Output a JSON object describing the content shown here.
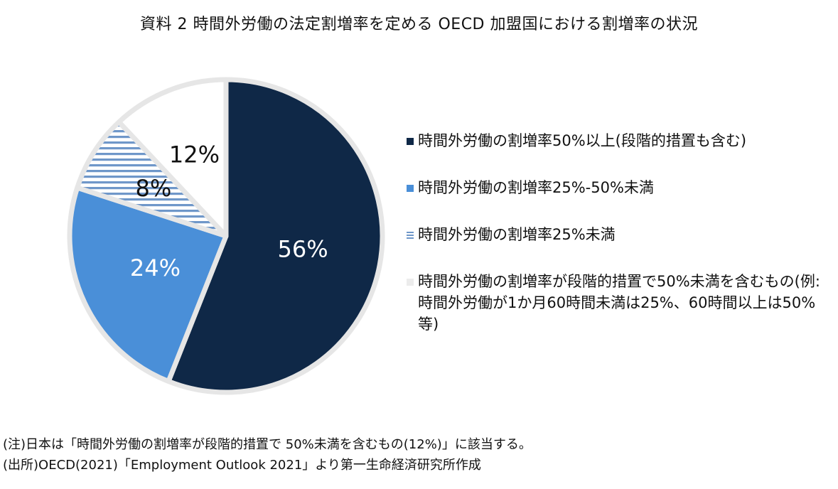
{
  "title": "資料 2 時間外労働の法定割増率を定める OECD 加盟国における割増率の状況",
  "chart_data": {
    "type": "pie",
    "start_angle_deg": 0,
    "direction": "clockwise",
    "slices": [
      {
        "label": "時間外労働の割増率50%以上(段階的措置も含む)",
        "value": 56,
        "display": "56%",
        "color": "#0f2847",
        "label_color": "#ffffff",
        "pattern": "solid"
      },
      {
        "label": "時間外労働の割増率25%-50%未満",
        "value": 24,
        "display": "24%",
        "color": "#4a8fd8",
        "label_color": "#ffffff",
        "pattern": "solid"
      },
      {
        "label": "時間外労働の割増率25%未満",
        "value": 8,
        "display": "8%",
        "color": "#6f97c9",
        "label_color": "#111111",
        "pattern": "stripes"
      },
      {
        "label": "時間外労働の割増率が段階的措置で50%未満を含むもの(例:時間外労働が1か月60時間未満は25%、60時間以上は50%等)",
        "value": 12,
        "display": "12%",
        "color": "#ffffff",
        "label_color": "#111111",
        "pattern": "solid"
      }
    ]
  },
  "legend": [
    {
      "label": "時間外労働の割増率50%以上(段階的措置も含む)"
    },
    {
      "label": "時間外労働の割増率25%-50%未満"
    },
    {
      "label": "時間外労働の割増率25%未満"
    },
    {
      "label": "時間外労働の割増率が段階的措置で50%未満を含むもの(例:時間外労働が1か月60時間未満は25%、60時間以上は50%等)"
    }
  ],
  "notes": {
    "note": "(注)日本は「時間外労働の割増率が段階的措置で 50%未満を含むもの(12%)」に該当する。",
    "source": "(出所)OECD(2021)「Employment Outlook 2021」より第一生命経済研究所作成"
  }
}
